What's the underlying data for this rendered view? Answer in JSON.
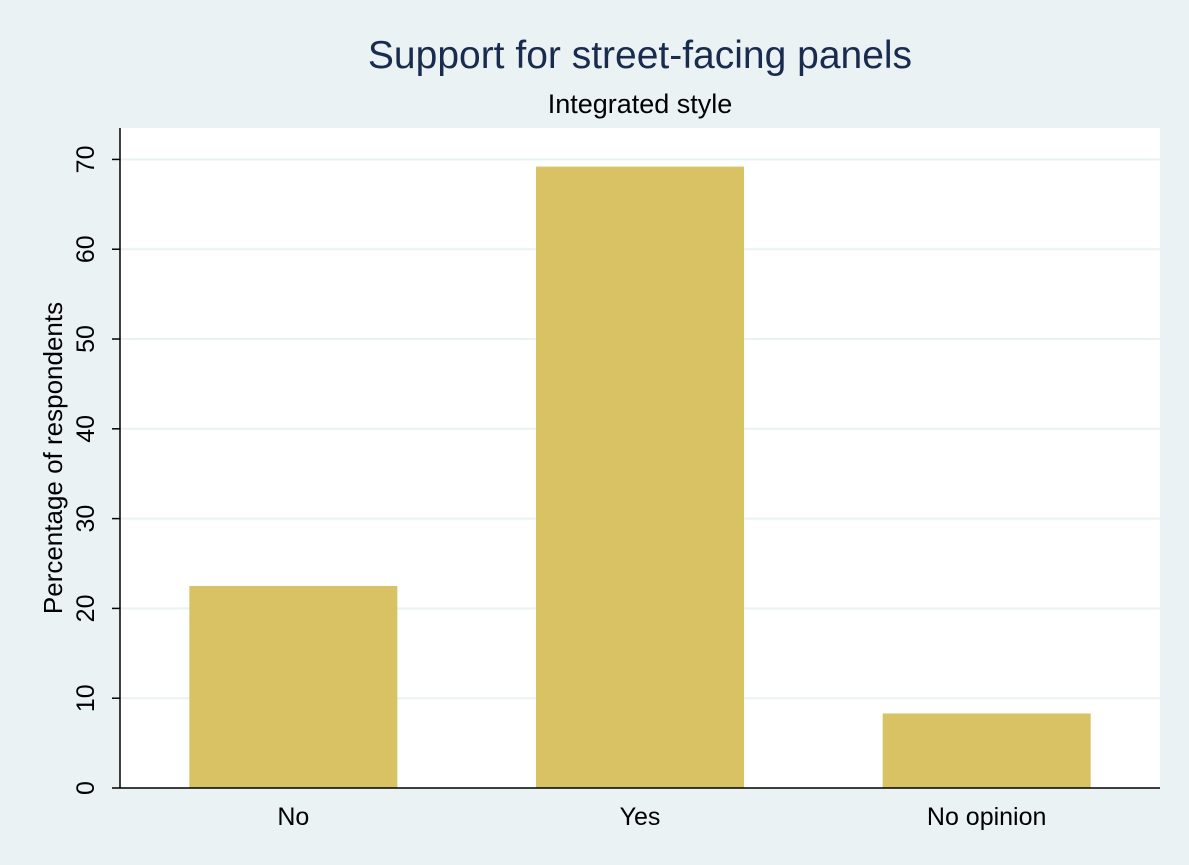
{
  "chart_data": {
    "type": "bar",
    "title": "Support for street-facing panels",
    "subtitle": "Integrated style",
    "xlabel": "",
    "ylabel": "Percentage of respondents",
    "categories": [
      "No",
      "Yes",
      "No opinion"
    ],
    "values": [
      22.5,
      69.2,
      8.3
    ],
    "ylim": [
      0,
      73.5
    ],
    "yticks": [
      "0",
      "10",
      "20",
      "30",
      "40",
      "50",
      "60",
      "70"
    ],
    "grid": true,
    "legend": "none"
  },
  "colors": {
    "background": "#eaf2f3",
    "plot_background": "#ffffff",
    "bar": "#d8c264",
    "grid": "#eaf2f3",
    "axis": "#000000",
    "title": "#1a2b50"
  }
}
